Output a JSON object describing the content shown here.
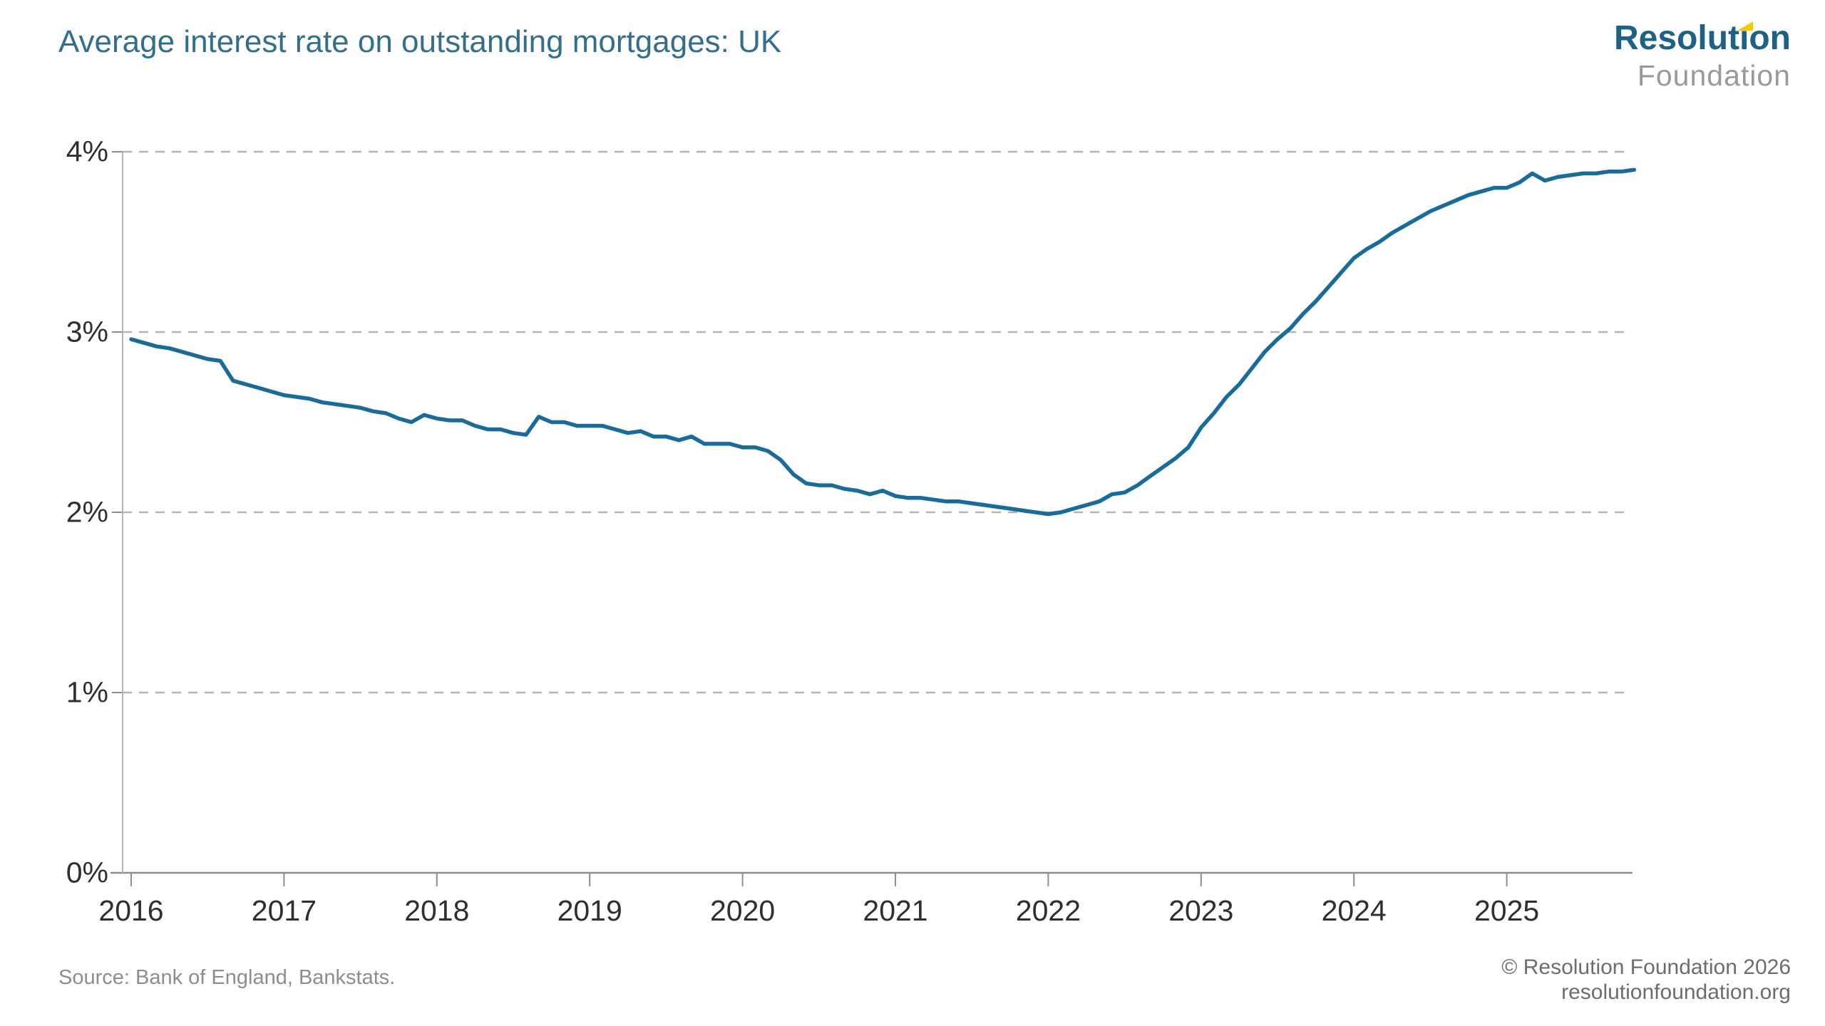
{
  "header": {
    "title": "Average interest rate on outstanding mortgages: UK",
    "logo": {
      "name": "Resolution Foundation",
      "line1_pre": "Resolut",
      "line1_i": "ı",
      "line1_post": "on",
      "line2": "Foundation",
      "flag_color": "#f7c800",
      "brand_teal": "#1d6187",
      "brand_gray": "#9a9a9a"
    }
  },
  "chart_data": {
    "type": "line",
    "title": "Average interest rate on outstanding mortgages: UK",
    "xlabel": "",
    "ylabel": "",
    "frequency": "monthly",
    "x_start": "2016-01",
    "x_end": "2025-11",
    "x_tick_labels": [
      "2016",
      "2017",
      "2018",
      "2019",
      "2020",
      "2021",
      "2022",
      "2023",
      "2024",
      "2025"
    ],
    "y_tick_labels": [
      "0%",
      "1%",
      "2%",
      "3%",
      "4%"
    ],
    "y_tick_values": [
      0,
      1,
      2,
      3,
      4
    ],
    "ylim": [
      0,
      4
    ],
    "grid": "horizontal-dashed",
    "legend": "none",
    "line_color": "#176c9c",
    "series": [
      {
        "name": "Average interest rate on outstanding mortgages",
        "values": [
          2.96,
          2.94,
          2.92,
          2.91,
          2.89,
          2.87,
          2.85,
          2.84,
          2.73,
          2.71,
          2.69,
          2.67,
          2.65,
          2.64,
          2.63,
          2.61,
          2.6,
          2.59,
          2.58,
          2.56,
          2.55,
          2.52,
          2.5,
          2.54,
          2.52,
          2.51,
          2.51,
          2.48,
          2.46,
          2.46,
          2.44,
          2.43,
          2.53,
          2.5,
          2.5,
          2.48,
          2.48,
          2.48,
          2.46,
          2.44,
          2.45,
          2.42,
          2.42,
          2.4,
          2.42,
          2.38,
          2.38,
          2.38,
          2.36,
          2.36,
          2.34,
          2.29,
          2.21,
          2.16,
          2.15,
          2.15,
          2.13,
          2.12,
          2.1,
          2.12,
          2.09,
          2.08,
          2.08,
          2.07,
          2.06,
          2.06,
          2.05,
          2.04,
          2.03,
          2.02,
          2.01,
          2.0,
          1.99,
          2.0,
          2.02,
          2.04,
          2.06,
          2.1,
          2.11,
          2.15,
          2.2,
          2.25,
          2.3,
          2.36,
          2.47,
          2.55,
          2.64,
          2.71,
          2.8,
          2.89,
          2.96,
          3.02,
          3.1,
          3.17,
          3.25,
          3.33,
          3.41,
          3.46,
          3.5,
          3.55,
          3.59,
          3.63,
          3.67,
          3.7,
          3.73,
          3.76,
          3.78,
          3.8,
          3.8,
          3.83,
          3.88,
          3.84,
          3.86,
          3.87,
          3.88,
          3.88,
          3.89,
          3.89,
          3.9
        ]
      }
    ]
  },
  "footer": {
    "source": "Source: Bank of England, Bankstats.",
    "copyright_line1": "© Resolution Foundation 2026",
    "copyright_line2": "resolutionfoundation.org"
  }
}
